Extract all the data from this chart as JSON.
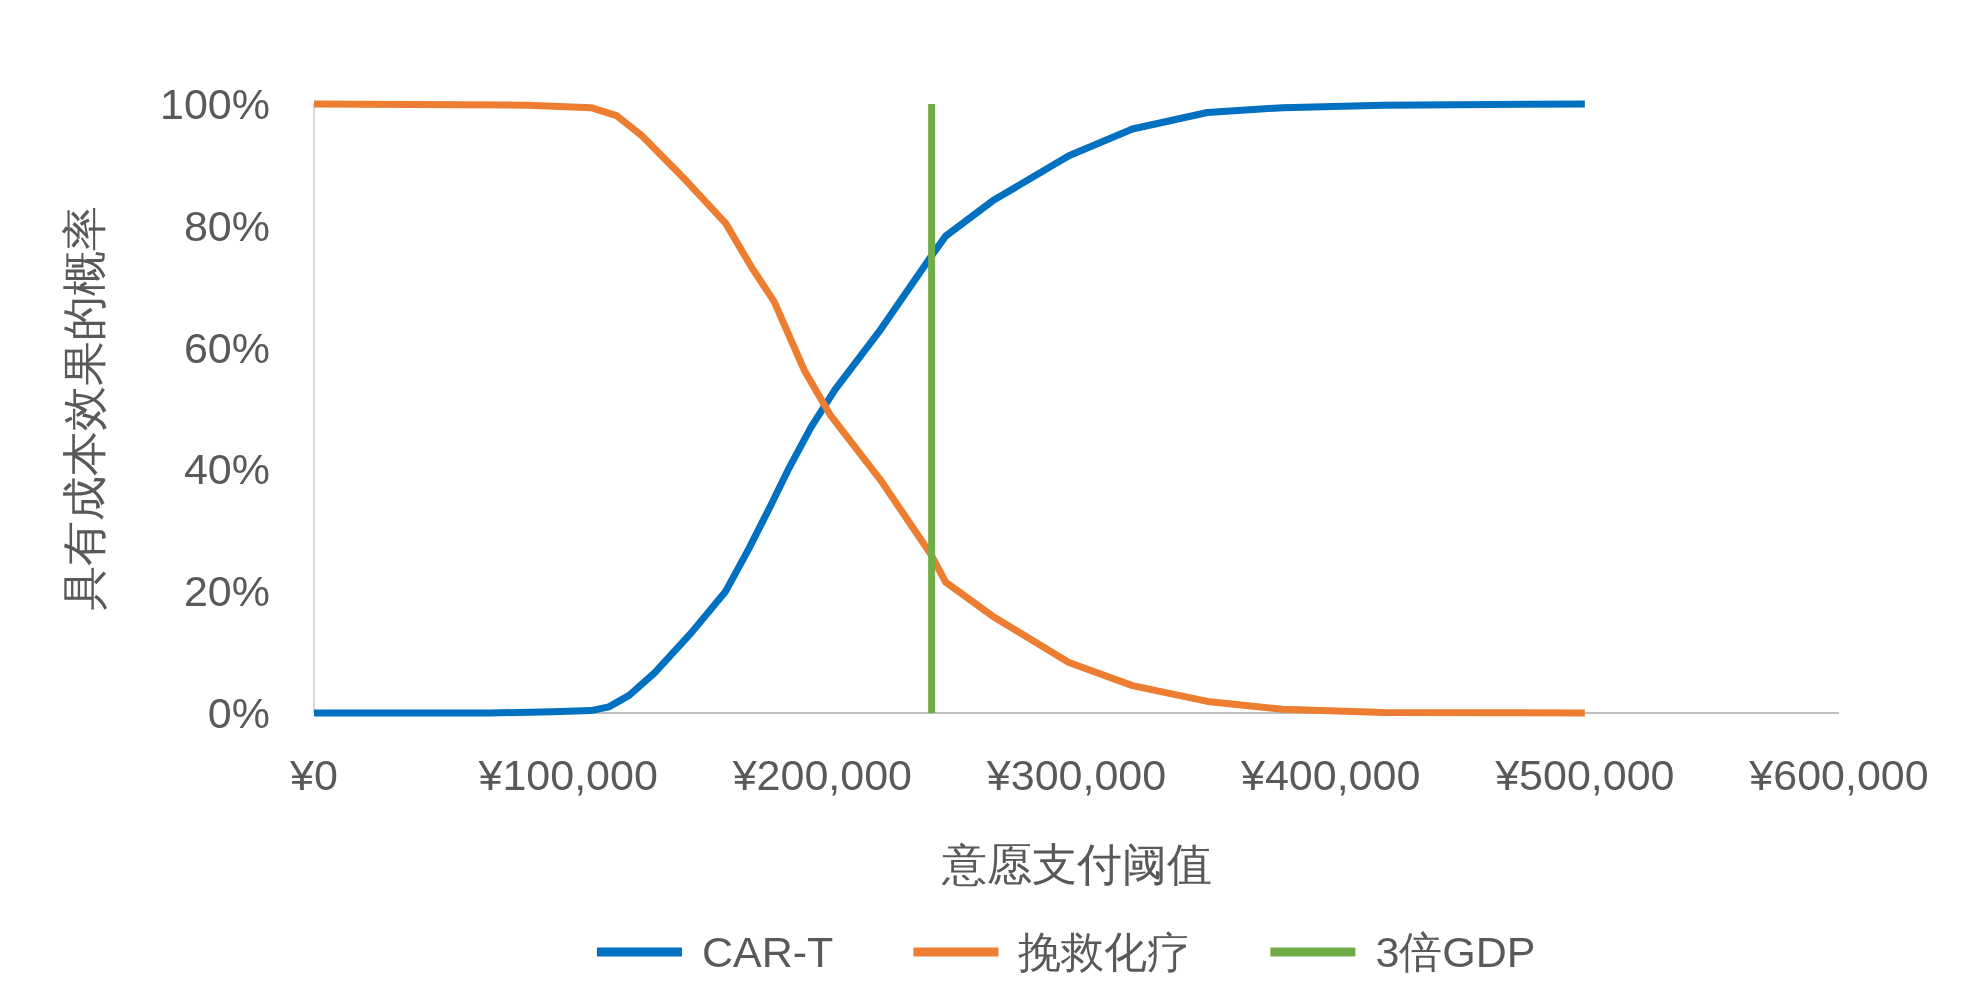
{
  "chart_data": {
    "type": "line",
    "xlabel": "意愿支付阈值",
    "ylabel": "具有成本效果的概率",
    "xlim": [
      0,
      600000
    ],
    "ylim": [
      0,
      100
    ],
    "xticks": [
      {
        "value": 0,
        "label": "¥0"
      },
      {
        "value": 100000,
        "label": "¥100,000"
      },
      {
        "value": 200000,
        "label": "¥200,000"
      },
      {
        "value": 300000,
        "label": "¥300,000"
      },
      {
        "value": 400000,
        "label": "¥400,000"
      },
      {
        "value": 500000,
        "label": "¥500,000"
      },
      {
        "value": 600000,
        "label": "¥600,000"
      }
    ],
    "yticks": [
      {
        "value": 0,
        "label": "0%"
      },
      {
        "value": 20,
        "label": "20%"
      },
      {
        "value": 40,
        "label": "40%"
      },
      {
        "value": 60,
        "label": "60%"
      },
      {
        "value": 80,
        "label": "80%"
      },
      {
        "value": 100,
        "label": "100%"
      }
    ],
    "legend": "bottom",
    "series": [
      {
        "name": "CAR-T",
        "color": "#0070c0",
        "x": [
          0,
          69300,
          94000,
          109000,
          116000,
          124000,
          134000,
          148500,
          162000,
          171000,
          179000,
          187000,
          195500,
          205000,
          223000,
          242500,
          248500,
          267000,
          297000,
          322000,
          351500,
          381000,
          421000,
          500000
        ],
        "values": [
          0,
          0,
          0.2,
          0.4,
          1,
          2.9,
          6.6,
          13.2,
          20,
          26.9,
          33.5,
          40.3,
          46.9,
          53.1,
          63,
          74.8,
          78.3,
          84.1,
          91.5,
          95.9,
          98.6,
          99.4,
          99.8,
          100
        ]
      },
      {
        "name": "挽救化疗",
        "color": "#ed7d31",
        "x": [
          0,
          84000,
          109000,
          119000,
          129000,
          146000,
          162000,
          172000,
          181000,
          193000,
          203000,
          223000,
          242500,
          248500,
          267000,
          297000,
          322000,
          351500,
          381000,
          421000,
          500000
        ],
        "values": [
          100,
          99.8,
          99.4,
          98.1,
          94.8,
          87.6,
          80.4,
          73.3,
          67.6,
          56.2,
          49,
          38.2,
          26.2,
          21.5,
          15.9,
          8.3,
          4.5,
          1.9,
          0.6,
          0.1,
          0
        ]
      },
      {
        "name": "3倍GDP",
        "color": "#70ad47",
        "x": [
          243000,
          243000
        ],
        "values": [
          0,
          100
        ]
      }
    ]
  }
}
